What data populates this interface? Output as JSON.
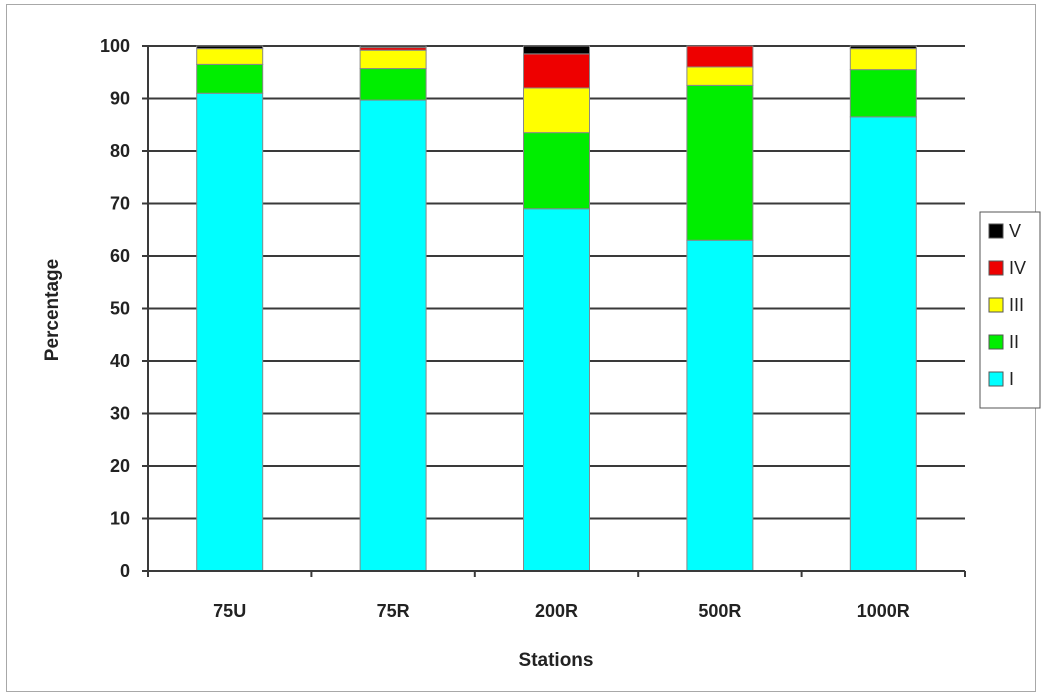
{
  "chart_data": {
    "type": "bar",
    "stacked": true,
    "title": "",
    "xlabel": "Stations",
    "ylabel": "Percentage",
    "ylim": [
      0,
      100
    ],
    "yticks": [
      "0",
      "10",
      "20",
      "30",
      "40",
      "50",
      "60",
      "70",
      "80",
      "90",
      "100"
    ],
    "grid": "horizontal",
    "legend_position": "right",
    "categories": [
      "75U",
      "75R",
      "200R",
      "500R",
      "1000R"
    ],
    "series": [
      {
        "name": "I",
        "color": "#00ffff",
        "values": [
          91,
          89.7,
          69,
          63,
          86.5
        ]
      },
      {
        "name": "II",
        "color": "#00ee00",
        "values": [
          5.5,
          6,
          14.5,
          29.5,
          9
        ]
      },
      {
        "name": "III",
        "color": "#ffff00",
        "values": [
          3,
          3.5,
          8.5,
          3.5,
          4
        ]
      },
      {
        "name": "IV",
        "color": "#ee0000",
        "values": [
          0,
          0.5,
          6.5,
          4,
          0
        ]
      },
      {
        "name": "V",
        "color": "#000000",
        "values": [
          0.5,
          0.3,
          1.5,
          0,
          0.5
        ]
      }
    ]
  }
}
